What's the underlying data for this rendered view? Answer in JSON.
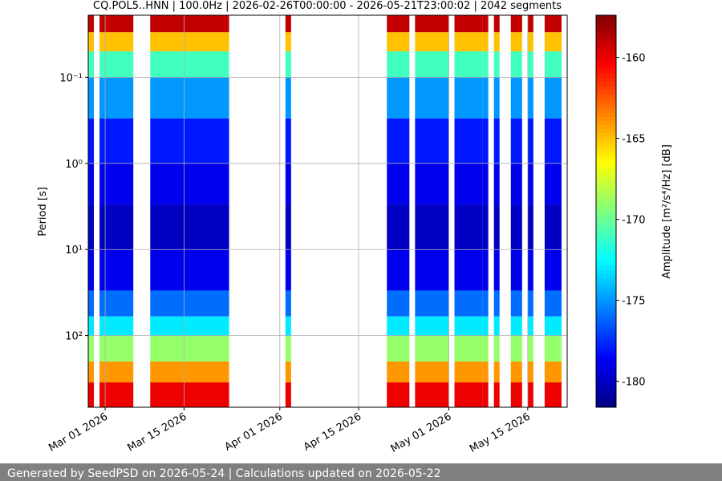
{
  "chart_data": {
    "type": "spectrogram",
    "title": "CQ.POL5..HNN | 100.0Hz | 2026-02-26T00:00:00 - 2026-05-21T23:00:02 | 2042 segments",
    "ylabel": "Period [s]",
    "colorbar_label": "Amplitude [m²/s⁴/Hz] [dB]",
    "colormap": "jet",
    "log_y": true,
    "y_inverted": true,
    "grid": true,
    "xlim": [
      "2026-02-26",
      "2026-05-21"
    ],
    "xticks": [
      {
        "value": "2026-03-01",
        "label": "Mar 01 2026"
      },
      {
        "value": "2026-03-15",
        "label": "Mar 15 2026"
      },
      {
        "value": "2026-04-01",
        "label": "Apr 01 2026"
      },
      {
        "value": "2026-04-15",
        "label": "Apr 15 2026"
      },
      {
        "value": "2026-05-01",
        "label": "May 01 2026"
      },
      {
        "value": "2026-05-15",
        "label": "May 15 2026"
      }
    ],
    "ylim": [
      0.019,
      680
    ],
    "yticks": [
      {
        "value": 0.1,
        "label": "10⁻¹"
      },
      {
        "value": 1,
        "label": "10⁰"
      },
      {
        "value": 10,
        "label": "10¹"
      },
      {
        "value": 100,
        "label": "10²"
      }
    ],
    "clim": [
      -181.6,
      -157.4
    ],
    "cticks": [
      -160,
      -165,
      -170,
      -175,
      -180
    ],
    "blocks": [
      [
        "2026-02-26",
        "2026-02-27"
      ],
      [
        "2026-02-28",
        "2026-03-06"
      ],
      [
        "2026-03-09",
        "2026-03-23"
      ],
      [
        "2026-04-02",
        "2026-04-03"
      ],
      [
        "2026-04-20",
        "2026-04-24"
      ],
      [
        "2026-04-25",
        "2026-05-01"
      ],
      [
        "2026-05-02",
        "2026-05-07"
      ],
      [
        "2026-05-07",
        "2026-05-08"
      ],
      [
        "2026-05-09",
        "2026-05-10"
      ],
      [
        "2026-05-12",
        "2026-05-14"
      ],
      [
        "2026-05-15",
        "2026-05-16"
      ],
      [
        "2026-05-18",
        "2026-05-21"
      ]
    ],
    "period_edges": [
      0.019,
      0.03,
      0.05,
      0.1,
      0.3,
      1,
      3,
      10,
      30,
      60,
      100,
      200,
      350,
      680
    ],
    "values": [
      -159,
      -165,
      -171,
      -175,
      -178,
      -179,
      -180,
      -179,
      -176,
      -173,
      -169,
      -164,
      -160
    ],
    "footer": "Generated by SeedPSD on 2026-05-24 | Calculations updated on 2026-05-22"
  }
}
